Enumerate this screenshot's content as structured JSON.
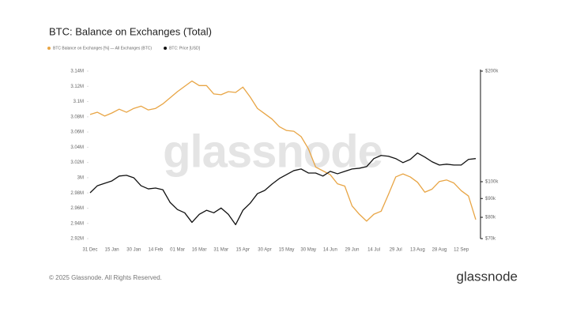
{
  "chart_data": {
    "type": "line",
    "title": "BTC: Balance on Exchanges (Total)",
    "categories": [
      "31 Dec",
      null,
      null,
      "15 Jan",
      null,
      null,
      "30 Jan",
      null,
      null,
      "14 Feb",
      null,
      null,
      "01 Mar",
      null,
      null,
      "16 Mar",
      null,
      null,
      "31 Mar",
      null,
      null,
      "15 Apr",
      null,
      null,
      "30 Apr",
      null,
      null,
      "15 May",
      null,
      null,
      "30 May",
      null,
      null,
      "14 Jun",
      null,
      null,
      "29 Jun",
      null,
      null,
      "14 Jul",
      null,
      null,
      "29 Jul",
      null,
      null,
      "13 Aug",
      null,
      null,
      "28 Aug",
      null,
      null,
      "12 Sep",
      null,
      null
    ],
    "series": [
      {
        "name": "BTC Balance on Exchanges [%] — All Exchanges (BTC)",
        "color": "#e8a545",
        "axis": "y",
        "values": [
          3083000,
          3086000,
          3081000,
          3085000,
          3090000,
          3086000,
          3091000,
          3094000,
          3089000,
          3091000,
          3097000,
          3105000,
          3113000,
          3120000,
          3127000,
          3121000,
          3121000,
          3110000,
          3109000,
          3113000,
          3112000,
          3119000,
          3106000,
          3091000,
          3084000,
          3077000,
          3067000,
          3062000,
          3061000,
          3054000,
          3038000,
          3014000,
          3009000,
          3004000,
          2992000,
          2989000,
          2963000,
          2952000,
          2943000,
          2952000,
          2956000,
          2978000,
          3001000,
          3005000,
          3001000,
          2994000,
          2981000,
          2985000,
          2995000,
          2997000,
          2993000,
          2983000,
          2976000,
          2945000
        ]
      },
      {
        "name": "BTC: Price [USD]",
        "color": "#111111",
        "axis": "y2",
        "values": [
          93300,
          97500,
          99000,
          100500,
          103600,
          104100,
          102500,
          97500,
          95600,
          96100,
          95100,
          87800,
          84000,
          82300,
          77500,
          81500,
          83600,
          82300,
          84800,
          81500,
          76400,
          83600,
          87400,
          92800,
          94700,
          98500,
          102000,
          104600,
          107200,
          108300,
          105600,
          105600,
          103600,
          106700,
          105100,
          106700,
          108300,
          108800,
          109900,
          115600,
          117900,
          117300,
          115600,
          112700,
          115000,
          119700,
          116700,
          113300,
          111000,
          111600,
          111000,
          111000,
          115000,
          115600
        ]
      }
    ],
    "ylim": [
      2920000,
      3140000
    ],
    "yticks": [
      {
        "value": 2920000,
        "label": "2.92M"
      },
      {
        "value": 2940000,
        "label": "2.94M"
      },
      {
        "value": 2960000,
        "label": "2.96M"
      },
      {
        "value": 2980000,
        "label": "2.98M"
      },
      {
        "value": 3000000,
        "label": "3M"
      },
      {
        "value": 3020000,
        "label": "3.02M"
      },
      {
        "value": 3040000,
        "label": "3.04M"
      },
      {
        "value": 3060000,
        "label": "3.06M"
      },
      {
        "value": 3080000,
        "label": "3.08M"
      },
      {
        "value": 3100000,
        "label": "3.1M"
      },
      {
        "value": 3120000,
        "label": "3.12M"
      },
      {
        "value": 3140000,
        "label": "3.14M"
      }
    ],
    "y2lim": [
      70000,
      200000
    ],
    "y2log": true,
    "y2ticks": [
      {
        "value": 70000,
        "label": "$70k"
      },
      {
        "value": 80000,
        "label": "$80k"
      },
      {
        "value": 90000,
        "label": "$90k"
      },
      {
        "value": 100000,
        "label": "$100k"
      },
      {
        "value": 200000,
        "label": "$200k"
      }
    ],
    "grid": false,
    "legend": "top-left"
  },
  "watermark": "glassnode",
  "copyright": "© 2025 Glassnode. All Rights Reserved.",
  "brand": "glassnode"
}
